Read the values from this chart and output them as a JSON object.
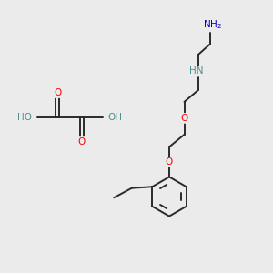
{
  "background_color": "#ebebeb",
  "bond_color": "#2a2a2a",
  "oxygen_color": "#ff0000",
  "nitrogen_color": "#0000cc",
  "heteroatom_h_color": "#4a8f8f",
  "line_width": 1.4,
  "font_size": 7.5,
  "xlim": [
    0,
    10
  ],
  "ylim": [
    0,
    10
  ]
}
